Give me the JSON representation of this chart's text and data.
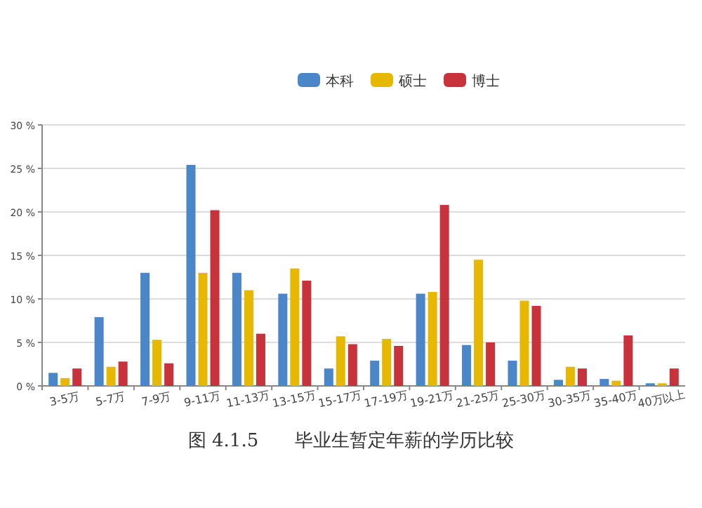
{
  "chart_data": {
    "type": "bar",
    "categories": [
      "3-5万",
      "5-7万",
      "7-9万",
      "9-11万",
      "11-13万",
      "13-15万",
      "15-17万",
      "17-19万",
      "19-21万",
      "21-25万",
      "25-30万",
      "30-35万",
      "35-40万",
      "40万以上"
    ],
    "series": [
      {
        "name": "本科",
        "color": "#4a86c8",
        "values": [
          1.5,
          7.9,
          13,
          25.4,
          13,
          10.6,
          2.0,
          2.9,
          10.6,
          4.7,
          2.9,
          0.7,
          0.8,
          0.3
        ]
      },
      {
        "name": "硕士",
        "color": "#e6b800",
        "values": [
          0.9,
          2.2,
          5.3,
          13,
          11.0,
          13.5,
          5.7,
          5.4,
          10.8,
          14.5,
          9.8,
          2.2,
          0.6,
          0.3
        ]
      },
      {
        "name": "博士",
        "color": "#c8323a",
        "values": [
          2.0,
          2.8,
          2.6,
          20.2,
          6.0,
          12.1,
          4.8,
          4.6,
          20.8,
          5.0,
          9.2,
          2.0,
          5.8,
          2.0
        ]
      }
    ],
    "ylim": [
      0,
      30
    ],
    "yticks": [
      {
        "value": 0,
        "label": "0 %"
      },
      {
        "value": 5,
        "label": "5 %"
      },
      {
        "value": 10,
        "label": "10 %"
      },
      {
        "value": 15,
        "label": "15 %"
      },
      {
        "value": 20,
        "label": "20 %"
      },
      {
        "value": 25,
        "label": "25 %"
      },
      {
        "value": 30,
        "label": "30 %"
      }
    ],
    "grid": "y",
    "legend": "top",
    "annotations": [
      "图 4.1.5　　毕业生暂定年薪的学历比较"
    ]
  }
}
